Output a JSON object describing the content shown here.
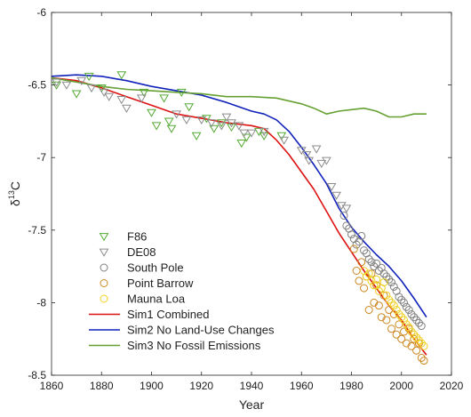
{
  "chart_data": {
    "type": "line",
    "xlabel": "Year",
    "ylabel": {
      "base": "δ",
      "sup": "13",
      "rest": "C"
    },
    "xlim": [
      1860,
      2020
    ],
    "ylim": [
      -8.5,
      -6
    ],
    "xticks": [
      1860,
      1880,
      1900,
      1920,
      1940,
      1960,
      1980,
      2000,
      2020
    ],
    "yticks": [
      -8.5,
      -8,
      -7.5,
      -7,
      -6.5,
      -6
    ],
    "xtick_labels": [
      "1860",
      "1880",
      "1900",
      "1920",
      "1940",
      "1960",
      "1980",
      "2000",
      "2020"
    ],
    "ytick_labels": [
      "-8.5",
      "-8",
      "-7.5",
      "-7",
      "-6.5",
      "-6"
    ],
    "grid": false,
    "legend_position": "bottom-left",
    "colors": {
      "f86": "#55aa33",
      "de08": "#8c8c8c",
      "south_pole": "#7f7f7f",
      "point_barrow": "#cc8822",
      "mauna_loa": "#f0d020",
      "sim1": "#dd1111",
      "sim2": "#1122bb",
      "sim3": "#66a033"
    },
    "legend": [
      {
        "key": "f86",
        "label": "F86",
        "marker": "triangle-down"
      },
      {
        "key": "de08",
        "label": "DE08",
        "marker": "triangle-down"
      },
      {
        "key": "south_pole",
        "label": "South Pole",
        "marker": "circle"
      },
      {
        "key": "point_barrow",
        "label": "Point Barrow",
        "marker": "circle"
      },
      {
        "key": "mauna_loa",
        "label": "Mauna Loa",
        "marker": "circle"
      },
      {
        "key": "sim1",
        "label": "Sim1 Combined",
        "marker": "line"
      },
      {
        "key": "sim2",
        "label": "Sim2 No Land-Use Changes",
        "marker": "line"
      },
      {
        "key": "sim3",
        "label": "Sim3 No Fossil Emissions",
        "marker": "line"
      }
    ],
    "scatter_series": [
      {
        "key": "f86",
        "marker": "triangle-down",
        "points": [
          [
            1862,
            -6.5
          ],
          [
            1870,
            -6.56
          ],
          [
            1875,
            -6.44
          ],
          [
            1880,
            -6.52
          ],
          [
            1888,
            -6.43
          ],
          [
            1897,
            -6.55
          ],
          [
            1900,
            -6.69
          ],
          [
            1902,
            -6.78
          ],
          [
            1905,
            -6.59
          ],
          [
            1907,
            -6.75
          ],
          [
            1908,
            -6.8
          ],
          [
            1912,
            -6.55
          ],
          [
            1915,
            -6.65
          ],
          [
            1918,
            -6.85
          ],
          [
            1922,
            -6.73
          ],
          [
            1925,
            -6.8
          ],
          [
            1928,
            -6.76
          ],
          [
            1932,
            -6.79
          ],
          [
            1936,
            -6.9
          ],
          [
            1938,
            -6.86
          ],
          [
            1943,
            -6.82
          ],
          [
            1945,
            -6.85
          ],
          [
            1952,
            -6.85
          ]
        ]
      },
      {
        "key": "de08",
        "marker": "triangle-down",
        "points": [
          [
            1862,
            -6.48
          ],
          [
            1866,
            -6.5
          ],
          [
            1872,
            -6.47
          ],
          [
            1876,
            -6.52
          ],
          [
            1881,
            -6.55
          ],
          [
            1883,
            -6.58
          ],
          [
            1888,
            -6.6
          ],
          [
            1890,
            -6.66
          ],
          [
            1896,
            -6.59
          ],
          [
            1910,
            -6.7
          ],
          [
            1914,
            -6.74
          ],
          [
            1920,
            -6.74
          ],
          [
            1924,
            -6.76
          ],
          [
            1928,
            -6.78
          ],
          [
            1930,
            -6.72
          ],
          [
            1932,
            -6.76
          ],
          [
            1935,
            -6.78
          ],
          [
            1937,
            -6.83
          ],
          [
            1940,
            -6.83
          ],
          [
            1945,
            -6.82
          ],
          [
            1953,
            -6.88
          ],
          [
            1960,
            -6.95
          ],
          [
            1962,
            -6.98
          ],
          [
            1963,
            -7.02
          ],
          [
            1966,
            -6.94
          ],
          [
            1968,
            -7.04
          ],
          [
            1970,
            -7.02
          ],
          [
            1972,
            -7.2
          ],
          [
            1974,
            -7.26
          ],
          [
            1976,
            -7.33
          ],
          [
            1978,
            -7.35
          ]
        ]
      },
      {
        "key": "south_pole",
        "marker": "circle",
        "points": [
          [
            1977,
            -7.4
          ],
          [
            1978,
            -7.47
          ],
          [
            1979,
            -7.49
          ],
          [
            1980,
            -7.53
          ],
          [
            1981,
            -7.56
          ],
          [
            1982,
            -7.6
          ],
          [
            1983,
            -7.58
          ],
          [
            1984,
            -7.54
          ],
          [
            1985,
            -7.64
          ],
          [
            1986,
            -7.66
          ],
          [
            1987,
            -7.7
          ],
          [
            1988,
            -7.72
          ],
          [
            1989,
            -7.75
          ],
          [
            1990,
            -7.73
          ],
          [
            1991,
            -7.78
          ],
          [
            1992,
            -7.76
          ],
          [
            1993,
            -7.8
          ],
          [
            1994,
            -7.82
          ],
          [
            1995,
            -7.84
          ],
          [
            1996,
            -7.86
          ],
          [
            1997,
            -7.89
          ],
          [
            1998,
            -7.92
          ],
          [
            1999,
            -7.96
          ],
          [
            2000,
            -7.98
          ],
          [
            2001,
            -8.0
          ],
          [
            2002,
            -8.03
          ],
          [
            2003,
            -8.05
          ],
          [
            2004,
            -8.08
          ],
          [
            2005,
            -8.1
          ],
          [
            2006,
            -8.12
          ],
          [
            2007,
            -8.14
          ],
          [
            2008,
            -8.16
          ]
        ]
      },
      {
        "key": "point_barrow",
        "marker": "circle",
        "points": [
          [
            1981,
            -7.63
          ],
          [
            1982,
            -7.78
          ],
          [
            1983,
            -7.85
          ],
          [
            1984,
            -7.72
          ],
          [
            1985,
            -7.9
          ],
          [
            1986,
            -7.82
          ],
          [
            1987,
            -8.05
          ],
          [
            1988,
            -7.8
          ],
          [
            1989,
            -8.0
          ],
          [
            1990,
            -7.88
          ],
          [
            1991,
            -8.02
          ],
          [
            1992,
            -8.1
          ],
          [
            1993,
            -7.95
          ],
          [
            1994,
            -8.12
          ],
          [
            1995,
            -8.05
          ],
          [
            1996,
            -8.18
          ],
          [
            1997,
            -8.08
          ],
          [
            1998,
            -8.22
          ],
          [
            1999,
            -8.15
          ],
          [
            2000,
            -8.25
          ],
          [
            2001,
            -8.2
          ],
          [
            2002,
            -8.28
          ],
          [
            2003,
            -8.18
          ],
          [
            2004,
            -8.3
          ],
          [
            2005,
            -8.25
          ],
          [
            2006,
            -8.33
          ],
          [
            2007,
            -8.28
          ],
          [
            2008,
            -8.38
          ],
          [
            2009,
            -8.4
          ]
        ]
      },
      {
        "key": "mauna_loa",
        "marker": "circle",
        "points": [
          [
            1985,
            -7.78
          ],
          [
            1986,
            -7.82
          ],
          [
            1987,
            -7.8
          ],
          [
            1988,
            -7.85
          ],
          [
            1989,
            -7.88
          ],
          [
            1990,
            -7.84
          ],
          [
            1991,
            -7.92
          ],
          [
            1992,
            -7.9
          ],
          [
            1993,
            -7.86
          ],
          [
            1994,
            -7.95
          ],
          [
            1995,
            -7.98
          ],
          [
            1996,
            -8.0
          ],
          [
            1997,
            -8.02
          ],
          [
            1998,
            -8.05
          ],
          [
            1999,
            -8.08
          ],
          [
            2000,
            -8.1
          ],
          [
            2001,
            -8.12
          ],
          [
            2002,
            -8.15
          ],
          [
            2003,
            -8.17
          ],
          [
            2004,
            -8.2
          ],
          [
            2005,
            -8.22
          ],
          [
            2006,
            -8.24
          ],
          [
            2007,
            -8.26
          ],
          [
            2008,
            -8.28
          ],
          [
            2009,
            -8.3
          ]
        ]
      }
    ],
    "line_series": [
      {
        "key": "sim1",
        "points": [
          [
            1860,
            -6.45
          ],
          [
            1870,
            -6.47
          ],
          [
            1880,
            -6.52
          ],
          [
            1890,
            -6.58
          ],
          [
            1900,
            -6.64
          ],
          [
            1910,
            -6.7
          ],
          [
            1920,
            -6.73
          ],
          [
            1930,
            -6.76
          ],
          [
            1940,
            -6.78
          ],
          [
            1945,
            -6.8
          ],
          [
            1950,
            -6.88
          ],
          [
            1955,
            -6.98
          ],
          [
            1960,
            -7.1
          ],
          [
            1965,
            -7.22
          ],
          [
            1970,
            -7.37
          ],
          [
            1975,
            -7.52
          ],
          [
            1980,
            -7.65
          ],
          [
            1985,
            -7.78
          ],
          [
            1990,
            -7.9
          ],
          [
            1995,
            -8.02
          ],
          [
            2000,
            -8.12
          ],
          [
            2005,
            -8.25
          ],
          [
            2010,
            -8.36
          ]
        ]
      },
      {
        "key": "sim2",
        "points": [
          [
            1860,
            -6.44
          ],
          [
            1870,
            -6.43
          ],
          [
            1880,
            -6.44
          ],
          [
            1890,
            -6.47
          ],
          [
            1900,
            -6.51
          ],
          [
            1910,
            -6.54
          ],
          [
            1920,
            -6.57
          ],
          [
            1930,
            -6.62
          ],
          [
            1940,
            -6.68
          ],
          [
            1945,
            -6.7
          ],
          [
            1950,
            -6.74
          ],
          [
            1955,
            -6.82
          ],
          [
            1960,
            -6.93
          ],
          [
            1965,
            -7.05
          ],
          [
            1970,
            -7.18
          ],
          [
            1975,
            -7.35
          ],
          [
            1980,
            -7.48
          ],
          [
            1985,
            -7.58
          ],
          [
            1990,
            -7.67
          ],
          [
            1995,
            -7.75
          ],
          [
            2000,
            -7.85
          ],
          [
            2005,
            -7.97
          ],
          [
            2010,
            -8.1
          ]
        ]
      },
      {
        "key": "sim3",
        "points": [
          [
            1860,
            -6.45
          ],
          [
            1870,
            -6.48
          ],
          [
            1880,
            -6.51
          ],
          [
            1890,
            -6.53
          ],
          [
            1900,
            -6.54
          ],
          [
            1910,
            -6.55
          ],
          [
            1920,
            -6.56
          ],
          [
            1930,
            -6.58
          ],
          [
            1940,
            -6.58
          ],
          [
            1950,
            -6.59
          ],
          [
            1960,
            -6.63
          ],
          [
            1965,
            -6.66
          ],
          [
            1970,
            -6.7
          ],
          [
            1975,
            -6.68
          ],
          [
            1980,
            -6.67
          ],
          [
            1985,
            -6.66
          ],
          [
            1990,
            -6.68
          ],
          [
            1995,
            -6.72
          ],
          [
            2000,
            -6.72
          ],
          [
            2005,
            -6.7
          ],
          [
            2010,
            -6.7
          ]
        ]
      }
    ]
  }
}
